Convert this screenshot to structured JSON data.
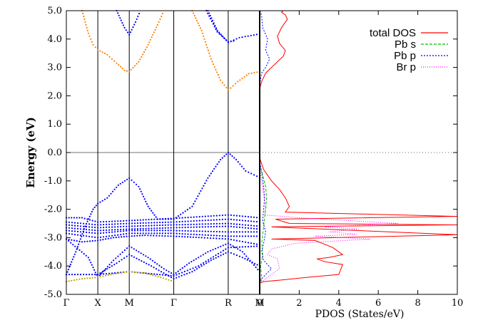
{
  "chart_data": [
    {
      "type": "scatter",
      "panel": "band-structure",
      "ylabel": "Energy (eV)",
      "ylim": [
        -5.0,
        5.0
      ],
      "y_ticks": [
        "5.0",
        "4.0",
        "3.0",
        "2.0",
        "1.0",
        "0.0",
        "-1.0",
        "-2.0",
        "-3.0",
        "-4.0",
        "-5.0"
      ],
      "k_points": [
        {
          "label": "Γ",
          "x": 0
        },
        {
          "label": "X",
          "x": 1
        },
        {
          "label": "M",
          "x": 2
        },
        {
          "label": "Γ",
          "x": 3.414
        },
        {
          "label": "R",
          "x": 5.146
        },
        {
          "label": "M",
          "x": 6.146
        }
      ],
      "fermi_level": 0.0,
      "series": [
        {
          "color": "#ff8000",
          "segments": [
            [
              [
                0.5,
                5.0
              ],
              [
                0.7,
                4.2
              ],
              [
                0.85,
                3.8
              ],
              [
                1,
                3.62
              ],
              [
                1.3,
                3.45
              ],
              [
                1.6,
                3.15
              ],
              [
                1.85,
                2.9
              ],
              [
                2,
                2.85
              ],
              [
                2.3,
                3.2
              ],
              [
                2.6,
                3.8
              ],
              [
                2.9,
                4.5
              ],
              [
                3.1,
                5.0
              ]
            ],
            [
              [
                4.0,
                5.0
              ],
              [
                4.3,
                4.3
              ],
              [
                4.6,
                3.3
              ],
              [
                4.9,
                2.55
              ],
              [
                5.146,
                2.2
              ],
              [
                5.45,
                2.5
              ],
              [
                5.8,
                2.78
              ],
              [
                6.146,
                2.85
              ]
            ]
          ]
        },
        {
          "color": "#0000ff",
          "segments": [
            [
              [
                1.6,
                5.0
              ],
              [
                1.85,
                4.4
              ],
              [
                2,
                4.15
              ],
              [
                2.2,
                4.6
              ],
              [
                2.35,
                5.0
              ]
            ],
            [
              [
                4.5,
                5.0
              ],
              [
                4.8,
                4.3
              ],
              [
                5.146,
                3.88
              ],
              [
                5.5,
                4.05
              ],
              [
                6.146,
                4.18
              ]
            ],
            [
              [
                4.45,
                5.0
              ],
              [
                4.8,
                4.25
              ],
              [
                5.146,
                3.9
              ],
              [
                5.4,
                3.95
              ]
            ],
            [
              [
                0,
                -4.3
              ],
              [
                0.3,
                -3.5
              ],
              [
                0.6,
                -2.6
              ],
              [
                0.85,
                -2.0
              ],
              [
                1,
                -1.8
              ],
              [
                1.3,
                -1.6
              ],
              [
                1.65,
                -1.15
              ],
              [
                2,
                -0.9
              ],
              [
                2.3,
                -1.2
              ],
              [
                2.6,
                -1.9
              ],
              [
                2.9,
                -2.35
              ],
              [
                3.414,
                -2.35
              ],
              [
                4.0,
                -1.9
              ],
              [
                4.5,
                -0.9
              ],
              [
                4.9,
                -0.25
              ],
              [
                5.146,
                0.0
              ],
              [
                5.4,
                -0.25
              ],
              [
                5.7,
                -0.65
              ],
              [
                6.146,
                -0.88
              ]
            ],
            [
              [
                0,
                -2.3
              ],
              [
                0.5,
                -2.3
              ],
              [
                1,
                -2.45
              ],
              [
                2,
                -2.4
              ],
              [
                3.414,
                -2.32
              ],
              [
                5.146,
                -2.2
              ],
              [
                6.146,
                -2.3
              ]
            ],
            [
              [
                0,
                -2.45
              ],
              [
                1,
                -2.55
              ],
              [
                2,
                -2.5
              ],
              [
                3.414,
                -2.45
              ],
              [
                5.146,
                -2.35
              ],
              [
                6.146,
                -2.45
              ]
            ],
            [
              [
                0,
                -2.55
              ],
              [
                1,
                -2.65
              ],
              [
                2,
                -2.6
              ],
              [
                3.414,
                -2.55
              ],
              [
                5.146,
                -2.5
              ],
              [
                6.146,
                -2.6
              ]
            ],
            [
              [
                0,
                -2.65
              ],
              [
                1,
                -2.75
              ],
              [
                2,
                -2.7
              ],
              [
                3.414,
                -2.65
              ],
              [
                5.146,
                -2.6
              ],
              [
                6.146,
                -2.7
              ]
            ],
            [
              [
                0,
                -2.75
              ],
              [
                1,
                -2.85
              ],
              [
                2,
                -2.75
              ],
              [
                3.414,
                -2.75
              ],
              [
                5.146,
                -2.8
              ],
              [
                6.146,
                -2.8
              ]
            ],
            [
              [
                0,
                -2.85
              ],
              [
                1,
                -3.0
              ],
              [
                2,
                -2.85
              ],
              [
                3.414,
                -2.85
              ],
              [
                5.146,
                -2.95
              ],
              [
                6.146,
                -2.95
              ]
            ],
            [
              [
                0,
                -3.05
              ],
              [
                0.5,
                -3.15
              ],
              [
                1,
                -3.1
              ],
              [
                1.5,
                -3.0
              ],
              [
                2,
                -2.95
              ],
              [
                2.5,
                -2.92
              ],
              [
                3.414,
                -2.95
              ],
              [
                4.3,
                -3.0
              ],
              [
                5.146,
                -3.05
              ],
              [
                6.146,
                -3.25
              ]
            ],
            [
              [
                0,
                -3.05
              ],
              [
                0.7,
                -3.7
              ],
              [
                1,
                -4.4
              ]
            ],
            [
              [
                1,
                -4.4
              ],
              [
                1.5,
                -3.8
              ],
              [
                2,
                -3.3
              ],
              [
                2.6,
                -3.7
              ],
              [
                3.1,
                -4.1
              ],
              [
                3.414,
                -4.3
              ],
              [
                3.9,
                -3.9
              ],
              [
                4.5,
                -3.5
              ],
              [
                5.146,
                -3.2
              ],
              [
                5.6,
                -3.5
              ],
              [
                6.146,
                -4.2
              ]
            ],
            [
              [
                1,
                -4.3
              ],
              [
                1.6,
                -3.9
              ],
              [
                2,
                -3.6
              ],
              [
                2.7,
                -4.0
              ],
              [
                3.414,
                -4.45
              ],
              [
                4.0,
                -4.2
              ],
              [
                4.6,
                -3.8
              ],
              [
                5.146,
                -3.5
              ],
              [
                5.6,
                -3.7
              ],
              [
                6.146,
                -4.0
              ]
            ],
            [
              [
                0,
                -4.3
              ],
              [
                1,
                -4.3
              ],
              [
                2,
                -4.2
              ],
              [
                3.414,
                -4.35
              ],
              [
                4.2,
                -4.0
              ],
              [
                5.146,
                -3.35
              ],
              [
                6.146,
                -3.3
              ]
            ]
          ]
        },
        {
          "color": "#bfa600",
          "segments": [
            [
              [
                0,
                -4.55
              ],
              [
                0.5,
                -4.45
              ],
              [
                1,
                -4.4
              ],
              [
                1.5,
                -4.28
              ],
              [
                2,
                -4.2
              ],
              [
                2.5,
                -4.25
              ],
              [
                3.0,
                -4.4
              ],
              [
                3.414,
                -4.55
              ]
            ]
          ]
        }
      ]
    },
    {
      "type": "line",
      "panel": "pdos",
      "xlabel": "PDOS (States/eV)",
      "xlim": [
        0,
        10
      ],
      "ylim": [
        -5.0,
        5.0
      ],
      "x_ticks": [
        "0",
        "2",
        "4",
        "6",
        "8",
        "10"
      ],
      "legend_position": "top-right",
      "series": [
        {
          "name": "total DOS",
          "color": "#ff0000",
          "dash": "",
          "x": [
            0,
            0.1,
            0.3,
            0.6,
            0.9,
            1.2,
            1.3,
            1.0,
            0.9,
            1.1,
            1.4,
            1.3,
            1.1,
            1.2,
            1.0,
            0.6,
            0.2,
            0,
            0,
            0.05,
            0.2,
            0.6,
            1.0,
            1.3,
            1.5,
            1.3,
            10,
            0.8,
            1.5,
            10,
            0.6,
            10,
            0.6,
            2.8,
            3.7,
            4.2,
            3.5,
            2.9,
            3.3,
            4.2,
            4.0,
            2.4,
            1.0,
            0.2,
            0
          ],
          "y": [
            2.25,
            2.5,
            2.8,
            3.0,
            3.2,
            3.4,
            3.6,
            3.85,
            4.1,
            4.4,
            4.7,
            4.85,
            4.95,
            5.0,
            5.0,
            5.0,
            5.0,
            5.0,
            -0.2,
            -0.3,
            -0.6,
            -1.0,
            -1.3,
            -1.6,
            -1.9,
            -2.1,
            -2.25,
            -2.35,
            -2.5,
            -2.55,
            -2.62,
            -2.9,
            -3.05,
            -3.1,
            -3.35,
            -3.6,
            -3.7,
            -3.75,
            -3.85,
            -3.95,
            -4.3,
            -4.4,
            -4.5,
            -4.55,
            -4.6
          ]
        },
        {
          "name": "Pb s",
          "color": "#00c000",
          "dash": "4,2",
          "x": [
            0,
            0.15,
            0.3,
            0.35,
            0.3,
            0.25,
            0.2,
            0.15,
            0.1,
            0.15,
            0.05,
            0.1,
            0
          ],
          "y": [
            -0.4,
            -0.8,
            -1.2,
            -1.6,
            -2.0,
            -2.3,
            -2.6,
            -2.9,
            -3.2,
            -3.6,
            -4.0,
            -4.4,
            -4.6
          ]
        },
        {
          "name": "Pb p",
          "color": "#0000ff",
          "dash": "2,2",
          "x": [
            0,
            0.1,
            0.3,
            0.5,
            0.3,
            0.4,
            0.15,
            0.1,
            0.05,
            0,
            0,
            0.1,
            0.2,
            0.25,
            0.2,
            0.15,
            0.3,
            0.2,
            0.1,
            0.2,
            0.6,
            0.3,
            0.1,
            0.05,
            0
          ],
          "y": [
            2.4,
            2.8,
            3.0,
            3.3,
            3.6,
            4.0,
            4.4,
            4.8,
            4.95,
            5.0,
            -0.3,
            -0.7,
            -1.2,
            -1.6,
            -2.0,
            -2.4,
            -2.8,
            -3.2,
            -3.5,
            -3.8,
            -4.1,
            -4.3,
            -4.45,
            -4.55,
            -4.6
          ]
        },
        {
          "name": "Br p",
          "color": "#ff00ff",
          "dash": "1,2",
          "x": [
            0,
            0.1,
            0.2,
            0.3,
            0.25,
            2.0,
            7.0,
            3.3,
            5.0,
            3.5,
            4.9,
            2.8,
            5.6,
            1.8,
            0.6,
            0.4,
            0.9,
            1.0,
            0.6,
            0.2,
            0
          ],
          "y": [
            -0.5,
            -1.0,
            -1.5,
            -1.9,
            -2.2,
            -2.3,
            -2.5,
            -2.62,
            -2.7,
            -2.8,
            -2.88,
            -2.95,
            -3.05,
            -3.2,
            -3.4,
            -3.6,
            -3.75,
            -4.1,
            -4.3,
            -4.5,
            -4.6
          ]
        }
      ]
    }
  ]
}
